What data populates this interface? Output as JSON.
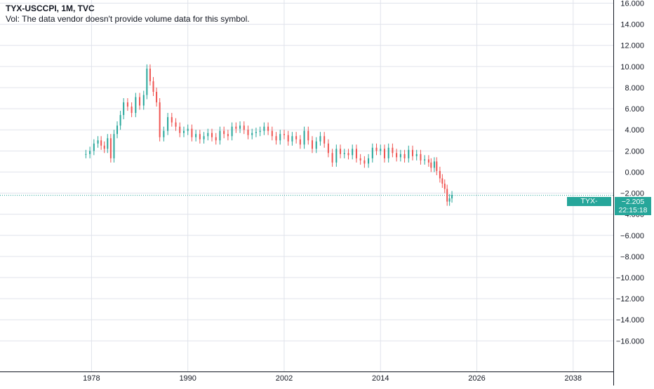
{
  "legend": {
    "symbol": "TYX-USCCPI, 1M, TVC",
    "volume_note": "Vol: The data vendor doesn't provide volume data for this symbol."
  },
  "price_label": {
    "name": "TYX-USCCPI",
    "value": "−2.205",
    "countdown": "22:15:18"
  },
  "colors": {
    "up": "#26a69a",
    "down": "#ef5350",
    "grid": "#e0e3eb",
    "last_line": "#26a69a",
    "axis_border": "#131722"
  },
  "chart_data": {
    "type": "candlestick",
    "title": "TYX-USCCPI, 1M, TVC",
    "x_tick_labels": [
      "1978",
      "1990",
      "2002",
      "2014",
      "2026",
      "2038"
    ],
    "y_tick_labels": [
      "16.000",
      "14.000",
      "12.000",
      "10.000",
      "8.000",
      "6.000",
      "4.000",
      "2.000",
      "0.000",
      "−2.000",
      "−4.000",
      "−6.000",
      "−8.000",
      "−10.000",
      "−12.000",
      "−14.000",
      "−16.000"
    ],
    "xlim": [
      1966.6,
      2043.0
    ],
    "ylim": [
      -18.9,
      16.3
    ],
    "last_value": -2.205,
    "grid": true,
    "series": [
      {
        "points": [
          [
            1977.3,
            1.7
          ],
          [
            1977.8,
            2.0
          ],
          [
            1978.3,
            2.7
          ],
          [
            1978.8,
            3.0
          ],
          [
            1979.2,
            2.5
          ],
          [
            1979.6,
            2.2
          ],
          [
            1980.0,
            3.2
          ],
          [
            1980.4,
            1.3
          ],
          [
            1980.8,
            3.6
          ],
          [
            1981.2,
            4.4
          ],
          [
            1981.6,
            5.4
          ],
          [
            1982.0,
            6.6
          ],
          [
            1982.5,
            6.2
          ],
          [
            1983.0,
            5.6
          ],
          [
            1983.5,
            7.1
          ],
          [
            1984.0,
            6.3
          ],
          [
            1984.5,
            7.3
          ],
          [
            1984.9,
            9.8
          ],
          [
            1985.3,
            8.6
          ],
          [
            1985.7,
            7.6
          ],
          [
            1986.1,
            6.6
          ],
          [
            1986.5,
            3.3
          ],
          [
            1987.0,
            3.9
          ],
          [
            1987.5,
            5.2
          ],
          [
            1988.0,
            4.7
          ],
          [
            1988.5,
            4.3
          ],
          [
            1989.0,
            3.7
          ],
          [
            1989.5,
            3.9
          ],
          [
            1990.0,
            4.1
          ],
          [
            1990.5,
            3.3
          ],
          [
            1991.0,
            3.6
          ],
          [
            1991.5,
            3.1
          ],
          [
            1992.0,
            3.4
          ],
          [
            1992.5,
            3.7
          ],
          [
            1993.0,
            3.3
          ],
          [
            1993.5,
            3.0
          ],
          [
            1994.0,
            3.9
          ],
          [
            1994.5,
            3.6
          ],
          [
            1995.0,
            3.4
          ],
          [
            1995.5,
            4.3
          ],
          [
            1996.0,
            4.1
          ],
          [
            1996.5,
            4.4
          ],
          [
            1997.0,
            4.0
          ],
          [
            1997.5,
            3.5
          ],
          [
            1998.0,
            3.7
          ],
          [
            1998.5,
            3.8
          ],
          [
            1999.0,
            3.9
          ],
          [
            1999.5,
            4.3
          ],
          [
            2000.0,
            3.9
          ],
          [
            2000.5,
            3.4
          ],
          [
            2001.0,
            3.0
          ],
          [
            2001.5,
            3.6
          ],
          [
            2002.0,
            3.5
          ],
          [
            2002.5,
            2.9
          ],
          [
            2003.0,
            3.4
          ],
          [
            2003.5,
            3.1
          ],
          [
            2004.0,
            2.6
          ],
          [
            2004.5,
            3.9
          ],
          [
            2005.0,
            3.0
          ],
          [
            2005.5,
            2.2
          ],
          [
            2006.0,
            2.9
          ],
          [
            2006.5,
            3.4
          ],
          [
            2007.0,
            2.7
          ],
          [
            2007.5,
            1.8
          ],
          [
            2008.0,
            0.9
          ],
          [
            2008.5,
            2.2
          ],
          [
            2009.0,
            1.7
          ],
          [
            2009.5,
            1.8
          ],
          [
            2010.0,
            1.6
          ],
          [
            2010.5,
            2.2
          ],
          [
            2011.0,
            1.3
          ],
          [
            2011.5,
            1.1
          ],
          [
            2012.0,
            0.8
          ],
          [
            2012.5,
            1.3
          ],
          [
            2013.0,
            2.3
          ],
          [
            2013.5,
            2.0
          ],
          [
            2014.0,
            2.2
          ],
          [
            2014.5,
            1.3
          ],
          [
            2015.0,
            2.3
          ],
          [
            2015.5,
            1.8
          ],
          [
            2016.0,
            1.4
          ],
          [
            2016.5,
            1.7
          ],
          [
            2017.0,
            1.3
          ],
          [
            2017.5,
            2.1
          ],
          [
            2018.0,
            1.5
          ],
          [
            2018.5,
            1.7
          ],
          [
            2019.0,
            1.1
          ],
          [
            2019.5,
            1.2
          ],
          [
            2020.0,
            0.9
          ],
          [
            2020.3,
            0.4
          ],
          [
            2020.7,
            1.0
          ],
          [
            2021.0,
            0.1
          ],
          [
            2021.4,
            -0.6
          ],
          [
            2021.7,
            -1.1
          ],
          [
            2022.0,
            -1.6
          ],
          [
            2022.3,
            -2.8
          ],
          [
            2022.6,
            -2.5
          ],
          [
            2022.9,
            -2.2
          ]
        ]
      }
    ]
  }
}
